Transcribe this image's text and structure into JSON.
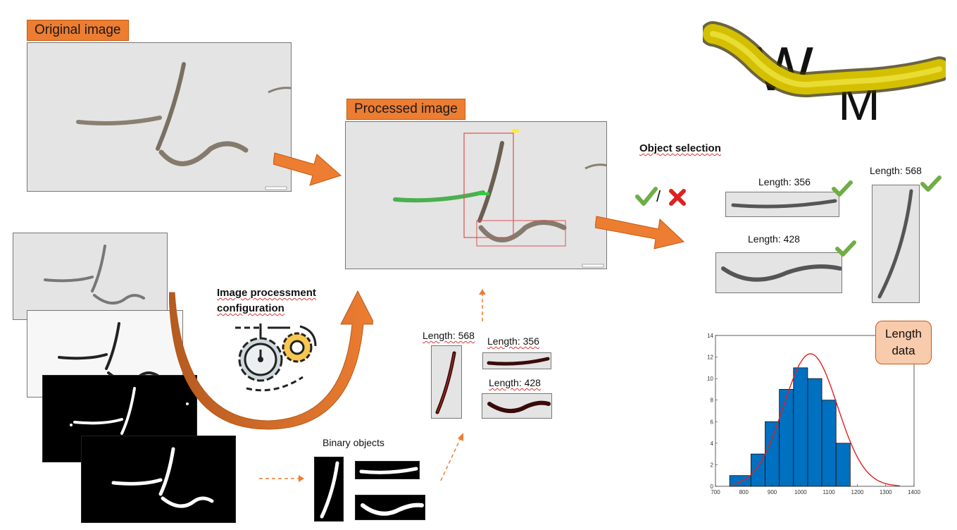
{
  "labels": {
    "original_image": "Original image",
    "processed_image": "Processed image",
    "object_selection": "Object selection",
    "image_processment_line1": "Image processment",
    "image_processment_line2": "configuration",
    "binary_objects": "Binary objects",
    "length_data_line1": "Length",
    "length_data_line2": "data",
    "selection_slash": "/"
  },
  "selected_objects": [
    {
      "label": "Length: 356"
    },
    {
      "label": "Length: 568"
    },
    {
      "label": "Length: 428"
    }
  ],
  "measured_objects": [
    {
      "label": "Length: 568"
    },
    {
      "label": "Length: 356"
    },
    {
      "label": "Length: 428"
    }
  ],
  "icons": {
    "check": "check-icon",
    "cross": "cross-icon",
    "gears": "gears-icon",
    "logo": "worm-logo-icon"
  },
  "colors": {
    "accent_orange": "#ed7d31",
    "check_green": "#70ad47",
    "cross_red": "#e02020",
    "histogram_blue": "#0070c0",
    "fit_red": "#e02020",
    "length_box": "#f8cbad"
  },
  "chart_data": {
    "type": "bar",
    "bin_edges": [
      750,
      825,
      875,
      925,
      975,
      1025,
      1075,
      1125,
      1175,
      1250
    ],
    "values": [
      1,
      3,
      6,
      9,
      11,
      10,
      8,
      4,
      0
    ],
    "fit_curve": {
      "type": "normal",
      "mean": 1035,
      "std": 95,
      "peak": 12.3
    },
    "x_ticks": [
      700,
      800,
      900,
      1000,
      1100,
      1200,
      1300,
      1400
    ],
    "y_ticks": [
      0,
      2,
      4,
      6,
      8,
      10,
      12,
      14
    ],
    "xlim": [
      700,
      1400
    ],
    "ylim": [
      0,
      14
    ],
    "grid": false
  }
}
